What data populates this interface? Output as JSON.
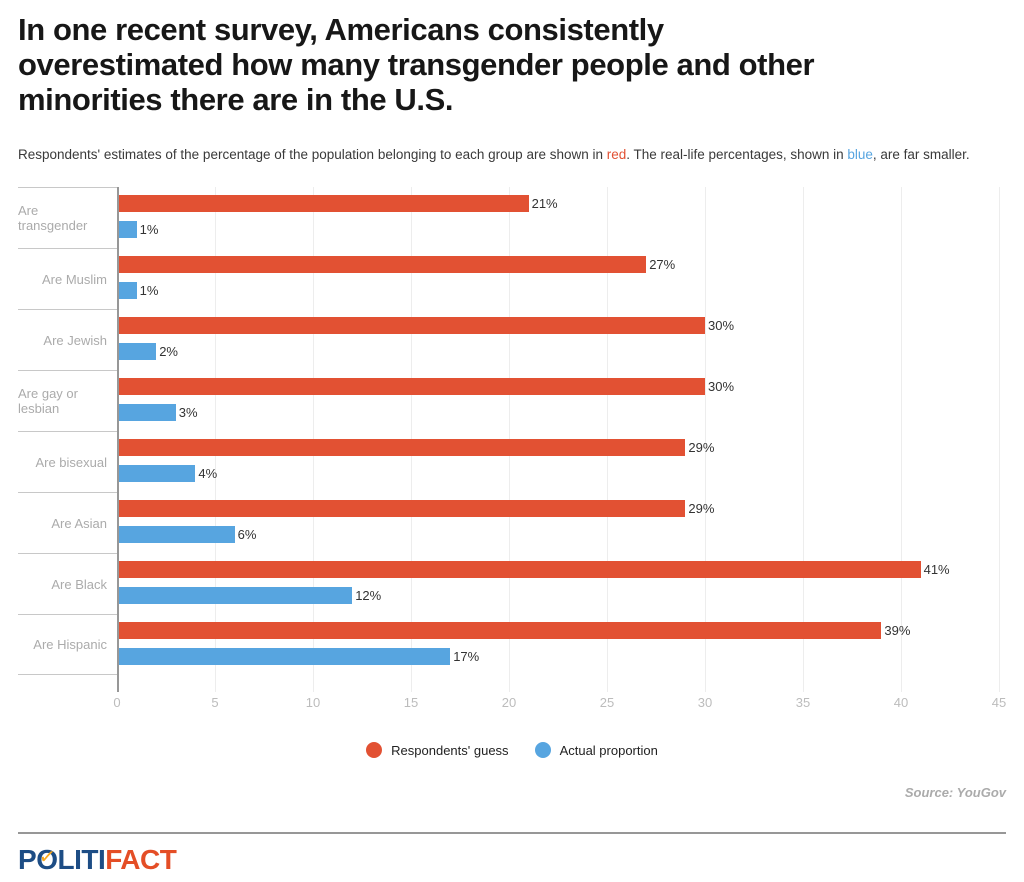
{
  "header": {
    "title_lines": [
      "In one recent survey, Americans consistently",
      "overestimated how many transgender people and other",
      "minorities there are in the U.S."
    ],
    "subtitle": {
      "before_red": "Respondents' estimates of the percentage of the population belonging to each group are shown in ",
      "red_word": "red",
      "between": ". The real-life percentages, shown in ",
      "blue_word": "blue",
      "after": ", are far smaller."
    }
  },
  "chart_data": {
    "type": "bar",
    "orientation": "horizontal",
    "title": "",
    "categories": [
      "Are transgender",
      "Are Muslim",
      "Are Jewish",
      "Are gay or lesbian",
      "Are bisexual",
      "Are Asian",
      "Are Black",
      "Are Hispanic"
    ],
    "series": [
      {
        "name": "Respondents' guess",
        "color": "#e25133",
        "values": [
          21,
          27,
          30,
          30,
          29,
          29,
          41,
          39
        ]
      },
      {
        "name": "Actual proportion",
        "color": "#57a5e0",
        "values": [
          1,
          1,
          2,
          3,
          4,
          6,
          12,
          17
        ]
      }
    ],
    "value_suffix": "%",
    "xlim": [
      0,
      45
    ],
    "x_ticks": [
      0,
      5,
      10,
      15,
      20,
      25,
      30,
      35,
      40,
      45
    ],
    "grid": true,
    "legend_position": "bottom",
    "value_labels": true
  },
  "source": "Source: YouGov",
  "footer": {
    "logo_p": "P",
    "logo_o": "O",
    "logo_liti": "LITI",
    "logo_fact": "FACT",
    "logo_check": "✓"
  }
}
